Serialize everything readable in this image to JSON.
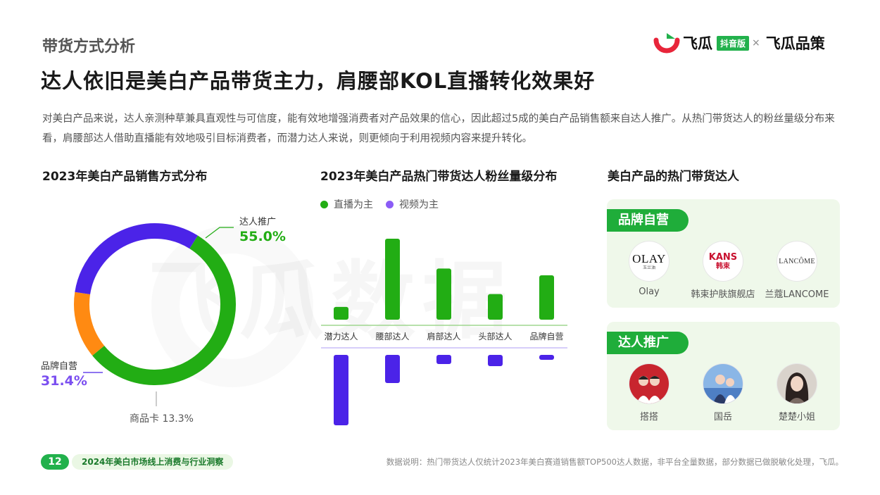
{
  "header": {
    "section_label": "带货方式分析",
    "headline": "达人依旧是美白产品带货主力，肩腰部KOL直播转化效果好",
    "description": "对美白产品来说，达人亲测种草兼具直观性与可信度，能有效地增强消费者对产品效果的信心，因此超过5成的美白产品销售额来自达人推广。从热门带货达人的粉丝量级分布来看，肩腰部达人借助直播能有效地吸引目标消费者，而潜力达人来说，则更倾向于利用视频内容来提升转化。"
  },
  "brand": {
    "name_1": "飞瓜",
    "badge": "抖音版",
    "separator": "×",
    "name_2": "飞瓜品策",
    "watermark": "飞瓜数据"
  },
  "colors": {
    "green": "#22ad14",
    "purple": "#4b23e8",
    "orange": "#ff8a12",
    "accent_green": "#1fad3a"
  },
  "panels": {
    "left_title": "2023年美白产品销售方式分布",
    "middle_title": "2023年美白产品热门带货达人粉丝量级分布",
    "right_title": "美白产品的热门带货达人"
  },
  "chart_data": [
    {
      "type": "pie",
      "title": "2023年美白产品销售方式分布",
      "slices": [
        {
          "name": "达人推广",
          "value": 55.0,
          "label": "55.0%",
          "color": "#22ad14"
        },
        {
          "name": "商品卡",
          "value": 13.3,
          "label": "商品卡 13.3%",
          "color": "#ff8a12"
        },
        {
          "name": "品牌自营",
          "value": 31.4,
          "label": "31.4%",
          "color": "#4b23e8"
        }
      ]
    },
    {
      "type": "bar",
      "title": "2023年美白产品热门带货达人粉丝量级分布",
      "categories": [
        "潜力达人",
        "腰部达人",
        "肩部达人",
        "头部达人",
        "品牌自营"
      ],
      "series": [
        {
          "name": "直播为主",
          "values": [
            15,
            95,
            60,
            30,
            52
          ],
          "color": "#22ad14"
        },
        {
          "name": "视频为主",
          "values": [
            100,
            40,
            13,
            16,
            7
          ],
          "color": "#4b23e8"
        }
      ]
    }
  ],
  "cards": {
    "brand_self": {
      "tag": "品牌自营",
      "items": [
        {
          "logo": "OLAY",
          "logo_sub": "玉兰油",
          "name": "Olay"
        },
        {
          "logo": "KANS",
          "logo_sub": "韩束",
          "name": "韩束护肤旗舰店"
        },
        {
          "logo": "LANCÔME",
          "name": "兰蔻LANCOME"
        }
      ]
    },
    "influencer": {
      "tag": "达人推广",
      "items": [
        {
          "name": "搭搭"
        },
        {
          "name": "国岳"
        },
        {
          "name": "楚楚小姐"
        }
      ]
    }
  },
  "footer": {
    "page_number": "12",
    "report_title": "2024年美白市场线上消费与行业洞察",
    "note": "数据说明：热门带货达人仅统计2023年美白赛道销售额TOP500达人数据，非平台全量数据，部分数据已做脱敏化处理，飞瓜。"
  }
}
